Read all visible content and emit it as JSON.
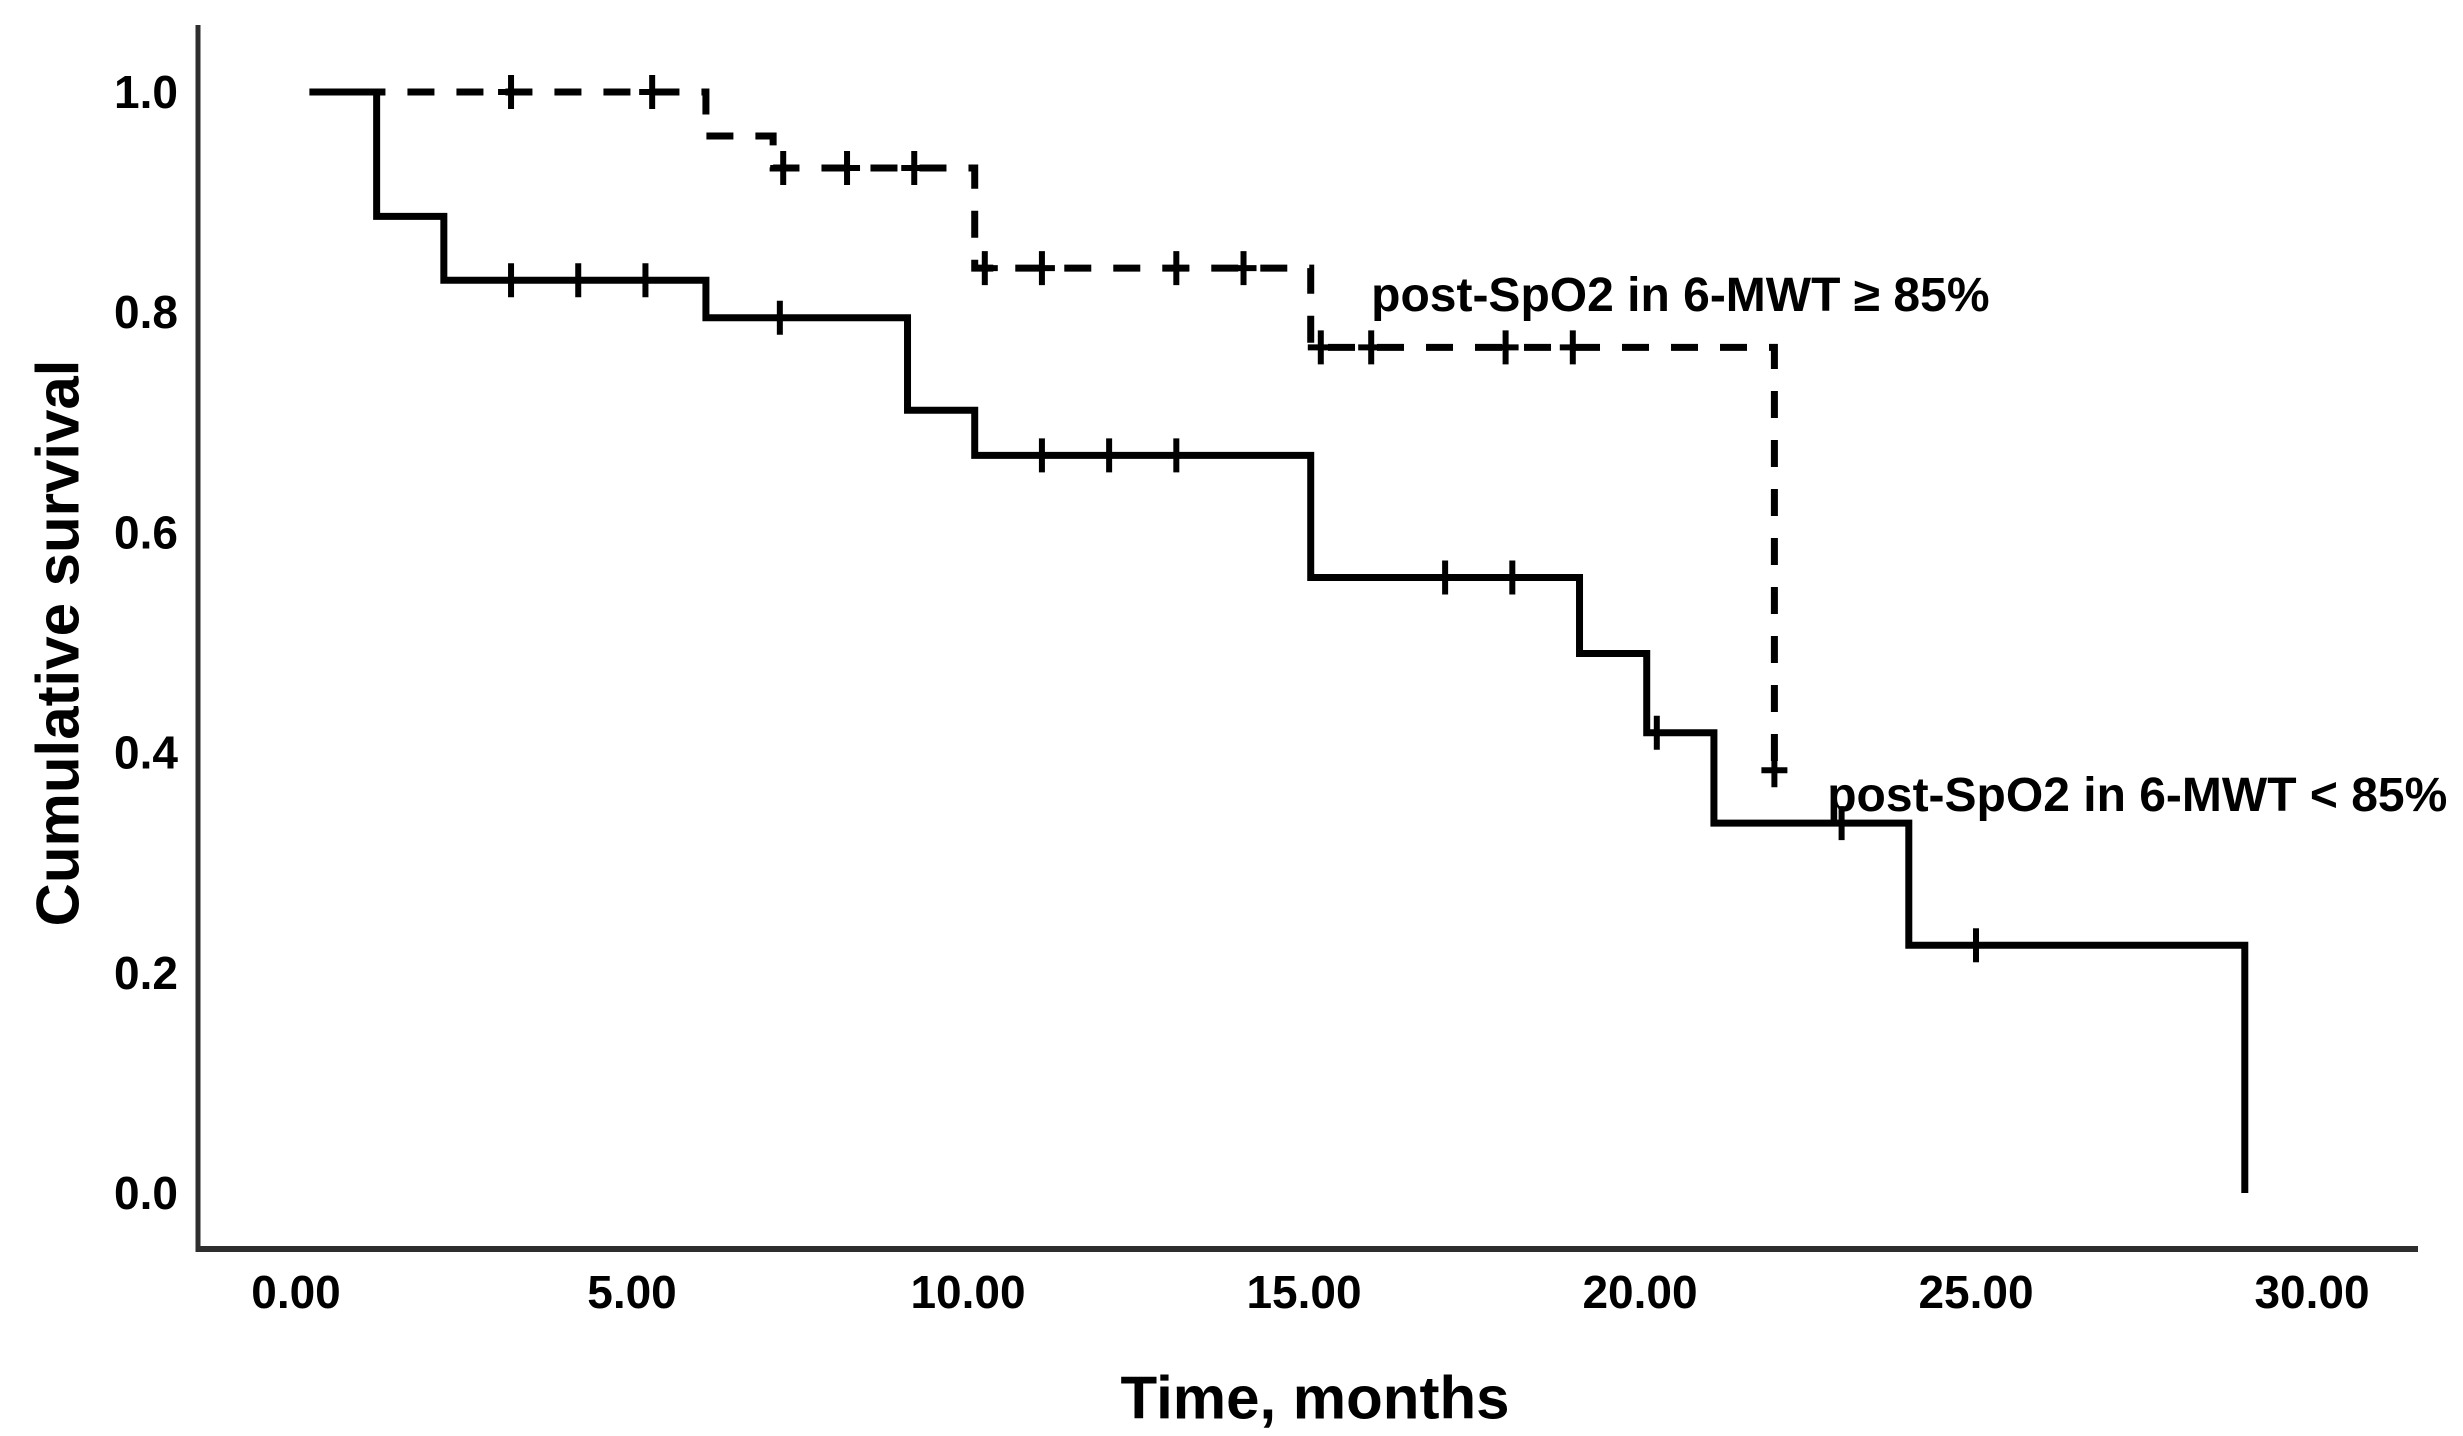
{
  "figure": {
    "background_color": "#ffffff",
    "curve_color": "#000000",
    "axis_color": "#2e2e2e",
    "text_color": "#000000"
  },
  "chart_data": {
    "type": "line",
    "subtype": "kaplan-meier-step",
    "title": "",
    "xlabel": "Time, months",
    "ylabel": "Cumulative survival",
    "xlim": [
      -1.5,
      31.6
    ],
    "ylim": [
      -0.05,
      1.02
    ],
    "grid": false,
    "legend_position": "inline-annotations",
    "x_ticks": [
      {
        "value": 0,
        "label": "0.00"
      },
      {
        "value": 5,
        "label": "5.00"
      },
      {
        "value": 10,
        "label": "10.00"
      },
      {
        "value": 15,
        "label": "15.00"
      },
      {
        "value": 20,
        "label": "20.00"
      },
      {
        "value": 25,
        "label": "25.00"
      },
      {
        "value": 30,
        "label": "30.00"
      }
    ],
    "y_ticks": [
      {
        "value": 1.0,
        "label": "1.0"
      },
      {
        "value": 0.8,
        "label": "0.8"
      },
      {
        "value": 0.6,
        "label": "0.6"
      },
      {
        "value": 0.4,
        "label": "0.4"
      },
      {
        "value": 0.2,
        "label": "0.2"
      },
      {
        "value": 0.0,
        "label": "0.0"
      }
    ],
    "series": [
      {
        "name": "post-SpO2 in 6-MWT >= 85%",
        "label_text": "post-SpO2 in 6-MWT ≥ 85%",
        "line_style": "dashed",
        "color": "#000000",
        "steps": [
          [
            0.2,
            1.0
          ],
          [
            6.1,
            0.96
          ],
          [
            7.1,
            0.931
          ],
          [
            10.1,
            0.84
          ],
          [
            15.1,
            0.768
          ],
          [
            22.0,
            0.384
          ]
        ],
        "censor_marks": [
          [
            3.2,
            1.0
          ],
          [
            5.3,
            1.0
          ],
          [
            7.25,
            0.931
          ],
          [
            8.2,
            0.931
          ],
          [
            9.2,
            0.931
          ],
          [
            10.25,
            0.84
          ],
          [
            11.1,
            0.84
          ],
          [
            13.1,
            0.84
          ],
          [
            14.1,
            0.84
          ],
          [
            15.25,
            0.768
          ],
          [
            16.0,
            0.768
          ],
          [
            18.0,
            0.768
          ],
          [
            19.0,
            0.768
          ],
          [
            22.0,
            0.384
          ]
        ],
        "label_anchor": {
          "x_month": 20.6,
          "y_survival": 0.815
        }
      },
      {
        "name": "post-SpO2 in 6-MWT < 85%",
        "label_text": "post-SpO2 in 6-MWT < 85%",
        "line_style": "solid",
        "color": "#000000",
        "steps": [
          [
            0.2,
            1.0
          ],
          [
            1.2,
            0.887
          ],
          [
            2.2,
            0.829
          ],
          [
            6.1,
            0.795
          ],
          [
            9.1,
            0.711
          ],
          [
            10.1,
            0.67
          ],
          [
            15.1,
            0.559
          ],
          [
            19.1,
            0.49
          ],
          [
            20.1,
            0.418
          ],
          [
            21.1,
            0.336
          ],
          [
            24.0,
            0.225
          ],
          [
            29.0,
            0.0
          ]
        ],
        "censor_marks": [
          [
            3.2,
            0.829
          ],
          [
            4.2,
            0.829
          ],
          [
            5.2,
            0.829
          ],
          [
            7.2,
            0.795
          ],
          [
            11.1,
            0.67
          ],
          [
            12.1,
            0.67
          ],
          [
            13.1,
            0.67
          ],
          [
            17.1,
            0.559
          ],
          [
            18.1,
            0.559
          ],
          [
            20.25,
            0.418
          ],
          [
            23.0,
            0.336
          ],
          [
            25.0,
            0.225
          ]
        ],
        "label_anchor": {
          "x_month": 27.4,
          "y_survival": 0.361
        }
      }
    ]
  }
}
